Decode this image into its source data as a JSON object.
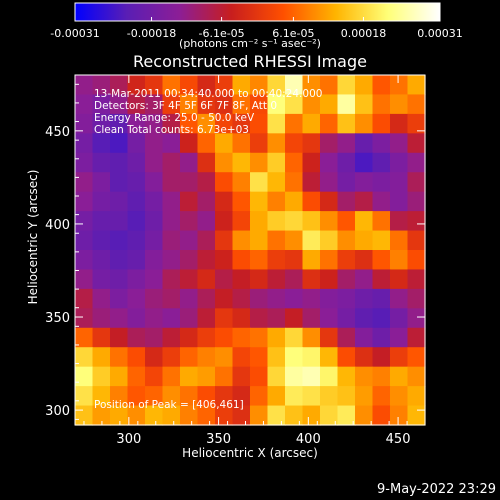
{
  "chart_data": {
    "type": "heatmap",
    "title": "Reconstructed RHESSI Image",
    "xlabel": "Heliocentric X (arcsec)",
    "ylabel": "Heliocentric Y (arcsec)",
    "xlim": [
      270,
      465
    ],
    "ylim": [
      292,
      480
    ],
    "xticks": [
      300,
      350,
      400,
      450
    ],
    "yticks": [
      300,
      350,
      400,
      450
    ],
    "grid": false,
    "colorbar": {
      "orientation": "horizontal",
      "placement": "top",
      "range": [
        -0.00031,
        0.00031
      ],
      "tick_labels": [
        "-0.00031",
        "-0.00018",
        "-6.1e-05",
        "6.1e-05",
        "0.00018",
        "0.00031"
      ],
      "units": "(photons cm⁻² s⁻¹ asec⁻²)",
      "colormap": [
        "#0000ff",
        "#5a1eb4",
        "#8c1e96",
        "#c81e1e",
        "#ff5000",
        "#ffb400",
        "#ffff78",
        "#ffffff"
      ]
    },
    "annotations": [
      "13-Mar-2011 00:34:40.000 to 00:40:24.000",
      "Detectors: 3F 4F 5F 6F 7F 8F, Att 0",
      "Energy Range: 25.0 - 50.0 keV",
      "Clean     Total counts: 6.73e+03"
    ],
    "peak_label": "Position of Peak = [406,461]",
    "peak": [
      406,
      461
    ],
    "intensity_grid_note_rows_top_to_bottom": "values normalized 0..1 over the colorbar range",
    "intensity_grid": [
      [
        0.3,
        0.32,
        0.36,
        0.45,
        0.5,
        0.62,
        0.55,
        0.46,
        0.52,
        0.7,
        0.65,
        0.78,
        0.92,
        0.66,
        0.62,
        0.78,
        0.7,
        0.58,
        0.62,
        0.7
      ],
      [
        0.28,
        0.24,
        0.3,
        0.38,
        0.34,
        0.52,
        0.64,
        0.5,
        0.48,
        0.62,
        0.55,
        0.86,
        0.8,
        0.66,
        0.7,
        0.9,
        0.74,
        0.62,
        0.66,
        0.62
      ],
      [
        0.26,
        0.2,
        0.16,
        0.28,
        0.3,
        0.38,
        0.58,
        0.66,
        0.54,
        0.5,
        0.56,
        0.8,
        0.62,
        0.7,
        0.6,
        0.74,
        0.66,
        0.56,
        0.46,
        0.52
      ],
      [
        0.22,
        0.14,
        0.12,
        0.22,
        0.3,
        0.28,
        0.44,
        0.6,
        0.7,
        0.62,
        0.52,
        0.66,
        0.54,
        0.5,
        0.34,
        0.3,
        0.18,
        0.24,
        0.3,
        0.4
      ],
      [
        0.24,
        0.18,
        0.16,
        0.2,
        0.3,
        0.34,
        0.3,
        0.48,
        0.66,
        0.72,
        0.66,
        0.76,
        0.6,
        0.44,
        0.28,
        0.2,
        0.12,
        0.16,
        0.24,
        0.3
      ],
      [
        0.3,
        0.24,
        0.16,
        0.18,
        0.26,
        0.34,
        0.34,
        0.38,
        0.56,
        0.64,
        0.8,
        0.72,
        0.62,
        0.4,
        0.3,
        0.22,
        0.26,
        0.24,
        0.26,
        0.36
      ],
      [
        0.28,
        0.22,
        0.2,
        0.16,
        0.22,
        0.3,
        0.4,
        0.34,
        0.46,
        0.58,
        0.72,
        0.64,
        0.7,
        0.56,
        0.46,
        0.34,
        0.38,
        0.3,
        0.26,
        0.32
      ],
      [
        0.22,
        0.18,
        0.18,
        0.14,
        0.2,
        0.3,
        0.34,
        0.3,
        0.44,
        0.54,
        0.7,
        0.76,
        0.78,
        0.74,
        0.66,
        0.58,
        0.72,
        0.62,
        0.38,
        0.4
      ],
      [
        0.2,
        0.16,
        0.14,
        0.16,
        0.22,
        0.32,
        0.3,
        0.36,
        0.5,
        0.66,
        0.7,
        0.62,
        0.66,
        0.82,
        0.76,
        0.66,
        0.7,
        0.72,
        0.62,
        0.5
      ],
      [
        0.24,
        0.2,
        0.16,
        0.18,
        0.26,
        0.3,
        0.34,
        0.4,
        0.44,
        0.56,
        0.6,
        0.52,
        0.5,
        0.7,
        0.62,
        0.52,
        0.48,
        0.58,
        0.64,
        0.56
      ],
      [
        0.3,
        0.22,
        0.2,
        0.24,
        0.28,
        0.36,
        0.4,
        0.46,
        0.38,
        0.42,
        0.46,
        0.4,
        0.36,
        0.48,
        0.44,
        0.34,
        0.3,
        0.4,
        0.46,
        0.4
      ],
      [
        0.38,
        0.3,
        0.24,
        0.28,
        0.32,
        0.34,
        0.3,
        0.36,
        0.42,
        0.38,
        0.32,
        0.3,
        0.28,
        0.3,
        0.26,
        0.24,
        0.2,
        0.18,
        0.3,
        0.34
      ],
      [
        0.36,
        0.32,
        0.3,
        0.26,
        0.3,
        0.28,
        0.32,
        0.4,
        0.5,
        0.46,
        0.38,
        0.36,
        0.42,
        0.34,
        0.28,
        0.22,
        0.16,
        0.14,
        0.22,
        0.3
      ],
      [
        0.6,
        0.5,
        0.42,
        0.36,
        0.34,
        0.4,
        0.46,
        0.52,
        0.56,
        0.6,
        0.62,
        0.7,
        0.78,
        0.66,
        0.5,
        0.36,
        0.26,
        0.2,
        0.28,
        0.4
      ],
      [
        0.78,
        0.7,
        0.62,
        0.56,
        0.46,
        0.52,
        0.6,
        0.64,
        0.66,
        0.54,
        0.58,
        0.74,
        0.86,
        0.84,
        0.72,
        0.56,
        0.48,
        0.42,
        0.52,
        0.58
      ],
      [
        0.86,
        0.76,
        0.7,
        0.6,
        0.54,
        0.62,
        0.7,
        0.68,
        0.62,
        0.5,
        0.56,
        0.78,
        0.9,
        0.92,
        0.84,
        0.72,
        0.66,
        0.64,
        0.7,
        0.66
      ],
      [
        0.8,
        0.72,
        0.64,
        0.58,
        0.6,
        0.66,
        0.62,
        0.56,
        0.5,
        0.46,
        0.6,
        0.7,
        0.82,
        0.8,
        0.76,
        0.74,
        0.68,
        0.6,
        0.66,
        0.7
      ],
      [
        0.74,
        0.68,
        0.7,
        0.66,
        0.72,
        0.7,
        0.64,
        0.6,
        0.52,
        0.48,
        0.66,
        0.8,
        0.74,
        0.7,
        0.78,
        0.82,
        0.66,
        0.56,
        0.64,
        0.72
      ]
    ]
  },
  "footer": {
    "date": "9-May-2022 23:29"
  }
}
